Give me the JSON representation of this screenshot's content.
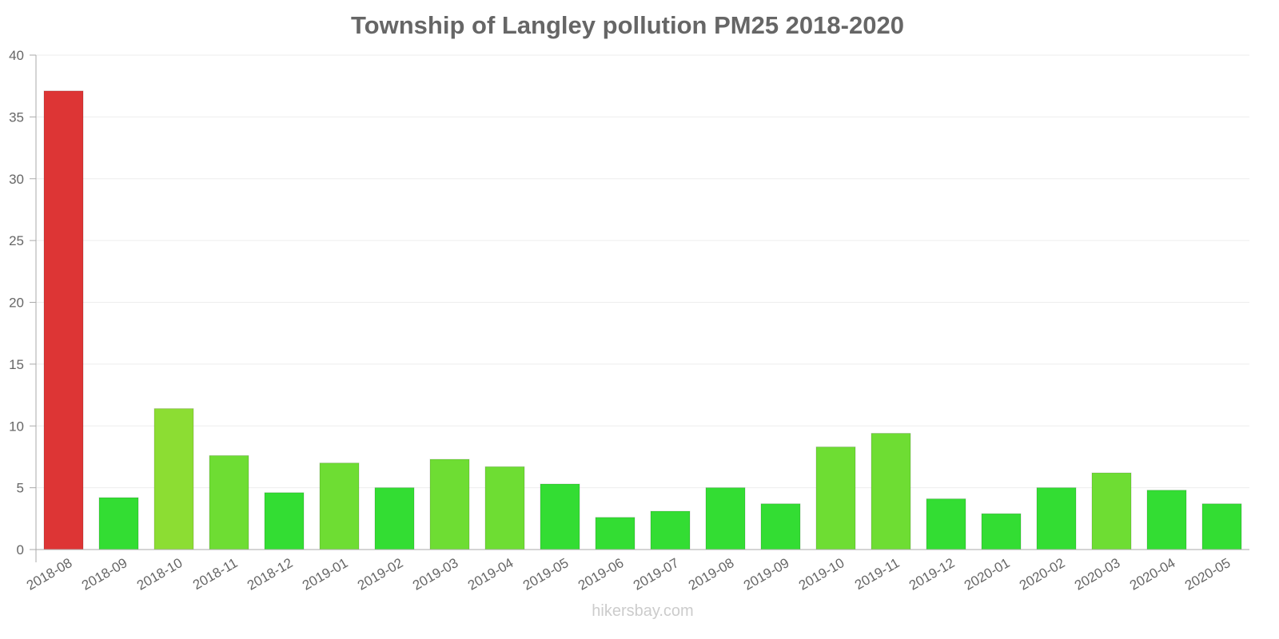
{
  "chart_data": {
    "type": "bar",
    "title": "Township of Langley pollution PM25 2018-2020",
    "xlabel": "",
    "ylabel": "",
    "ylim": [
      0,
      40
    ],
    "yticks": [
      "0",
      "5",
      "10",
      "15",
      "20",
      "25",
      "30",
      "35",
      "40"
    ],
    "grid": true,
    "categories": [
      "2018-08",
      "2018-09",
      "2018-10",
      "2018-11",
      "2018-12",
      "2019-01",
      "2019-02",
      "2019-03",
      "2019-04",
      "2019-05",
      "2019-06",
      "2019-07",
      "2019-08",
      "2019-09",
      "2019-10",
      "2019-11",
      "2019-12",
      "2020-01",
      "2020-02",
      "2020-03",
      "2020-04",
      "2020-05"
    ],
    "values": [
      37.1,
      4.2,
      11.4,
      7.6,
      4.6,
      7.0,
      5.0,
      7.3,
      6.7,
      5.3,
      2.6,
      3.1,
      5.0,
      3.7,
      8.3,
      9.4,
      4.1,
      2.9,
      5.0,
      6.2,
      4.8,
      3.7
    ],
    "colors": {
      "high": "#dd3535",
      "moderate": "#8cdd33",
      "fair": "#6edd33",
      "good": "#33dd33"
    }
  },
  "watermark": "hikersbay.com"
}
